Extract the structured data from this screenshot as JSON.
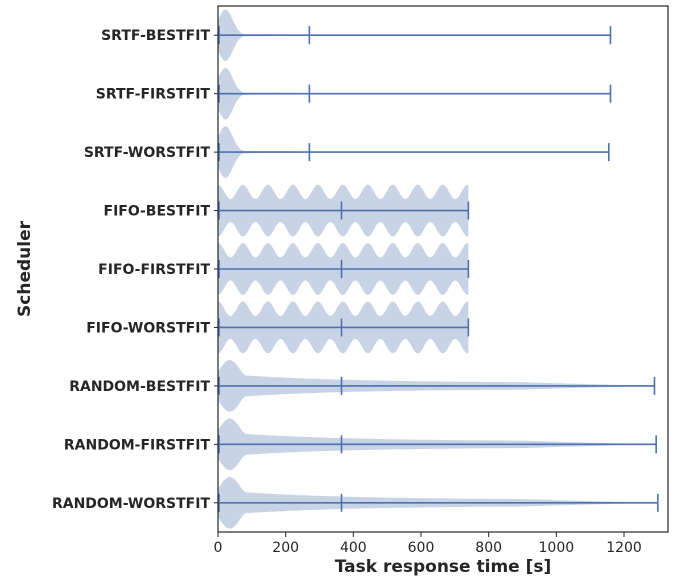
{
  "chart_data": {
    "type": "violin",
    "xlabel": "Task response time [s]",
    "ylabel": "Scheduler",
    "xlim": [
      0,
      1330
    ],
    "xticks": [
      0,
      200,
      400,
      600,
      800,
      1000,
      1200
    ],
    "grid": false,
    "colors": {
      "violin_fill": "#c8d3e6",
      "stat_line": "#4c72b0",
      "axis": "#262626"
    },
    "categories": [
      "SRTF-BESTFIT",
      "SRTF-FIRSTFIT",
      "SRTF-WORSTFIT",
      "FIFO-BESTFIT",
      "FIFO-FIRSTFIT",
      "FIFO-WORSTFIT",
      "RANDOM-BESTFIT",
      "RANDOM-FIRSTFIT",
      "RANDOM-WORSTFIT"
    ],
    "series": [
      {
        "category": "SRTF-BESTFIT",
        "min": 0,
        "mean": 270,
        "max": 1160,
        "shape": "srtf"
      },
      {
        "category": "SRTF-FIRSTFIT",
        "min": 0,
        "mean": 270,
        "max": 1160,
        "shape": "srtf"
      },
      {
        "category": "SRTF-WORSTFIT",
        "min": 0,
        "mean": 270,
        "max": 1155,
        "shape": "srtf"
      },
      {
        "category": "FIFO-BESTFIT",
        "min": 0,
        "mean": 365,
        "max": 740,
        "shape": "fifo"
      },
      {
        "category": "FIFO-FIRSTFIT",
        "min": 0,
        "mean": 365,
        "max": 740,
        "shape": "fifo"
      },
      {
        "category": "FIFO-WORSTFIT",
        "min": 0,
        "mean": 365,
        "max": 740,
        "shape": "fifo"
      },
      {
        "category": "RANDOM-BESTFIT",
        "min": 0,
        "mean": 365,
        "max": 1290,
        "shape": "random"
      },
      {
        "category": "RANDOM-FIRSTFIT",
        "min": 0,
        "mean": 365,
        "max": 1295,
        "shape": "random"
      },
      {
        "category": "RANDOM-WORSTFIT",
        "min": 0,
        "mean": 365,
        "max": 1300,
        "shape": "random"
      }
    ]
  }
}
